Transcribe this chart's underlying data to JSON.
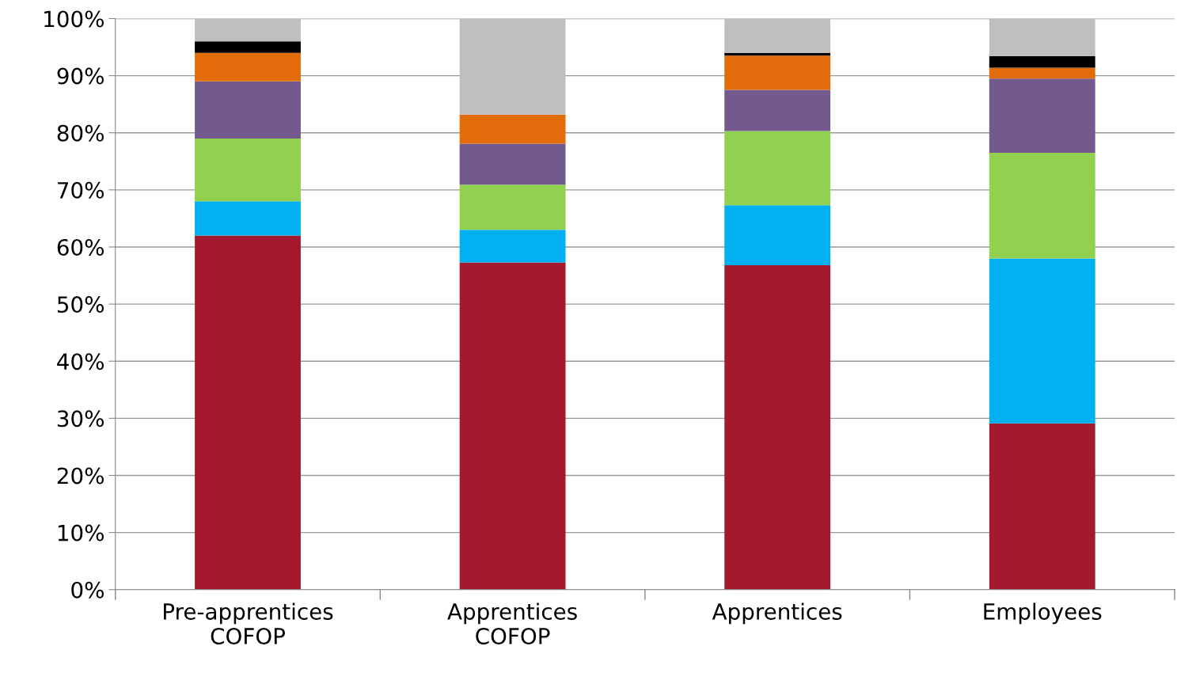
{
  "chart_data": {
    "type": "bar",
    "stacked": true,
    "categories": [
      "Pre-apprentices\nCOFOP",
      "Apprentices\nCOFOP",
      "Apprentices",
      "Employees"
    ],
    "series": [
      {
        "color": "#a31a2e",
        "values": [
          62,
          57.3,
          56.8,
          29.1
        ]
      },
      {
        "color": "#00b0f0",
        "values": [
          6,
          5.7,
          10.5,
          28.9
        ]
      },
      {
        "color": "#92d050",
        "values": [
          11,
          7.9,
          13,
          18.5
        ]
      },
      {
        "color": "#72598e",
        "values": [
          10,
          7.2,
          7.2,
          13
        ]
      },
      {
        "color": "#e36c0a",
        "values": [
          5,
          5.1,
          6,
          1.9
        ]
      },
      {
        "color": "#000000",
        "values": [
          2,
          0,
          0.5,
          2
        ]
      },
      {
        "color": "#bfbfbf",
        "values": [
          4,
          16.8,
          6,
          6.6
        ]
      }
    ],
    "ylim": [
      0,
      100
    ],
    "yticks": [
      {
        "value": 0,
        "label": "0%"
      },
      {
        "value": 10,
        "label": "10%"
      },
      {
        "value": 20,
        "label": "20%"
      },
      {
        "value": 30,
        "label": "30%"
      },
      {
        "value": 40,
        "label": "40%"
      },
      {
        "value": 50,
        "label": "50%"
      },
      {
        "value": 60,
        "label": "60%"
      },
      {
        "value": 70,
        "label": "70%"
      },
      {
        "value": 80,
        "label": "80%"
      },
      {
        "value": 90,
        "label": "90%"
      },
      {
        "value": 100,
        "label": "100%"
      }
    ],
    "grid": "y",
    "legend": false
  }
}
